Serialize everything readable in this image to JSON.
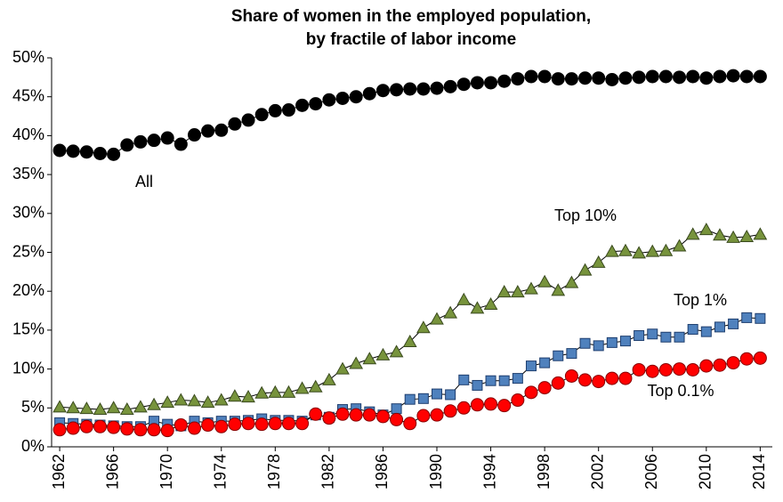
{
  "chart_data": {
    "type": "line",
    "title": [
      "Share of women in the employed population,",
      "by fractile of labor income"
    ],
    "x": [
      1962,
      1963,
      1964,
      1965,
      1966,
      1967,
      1968,
      1969,
      1970,
      1971,
      1972,
      1973,
      1974,
      1975,
      1976,
      1977,
      1978,
      1979,
      1980,
      1981,
      1982,
      1983,
      1984,
      1985,
      1986,
      1987,
      1988,
      1989,
      1990,
      1991,
      1992,
      1993,
      1994,
      1995,
      1996,
      1997,
      1998,
      1999,
      2000,
      2001,
      2002,
      2003,
      2004,
      2005,
      2006,
      2007,
      2008,
      2009,
      2010,
      2011,
      2012,
      2013,
      2014
    ],
    "xlim": [
      1961.4,
      2014.9
    ],
    "xticks": [
      1962,
      1966,
      1970,
      1974,
      1978,
      1982,
      1986,
      1990,
      1994,
      1998,
      2002,
      2006,
      2010,
      2014
    ],
    "ylim": [
      0,
      50
    ],
    "yticks": [
      {
        "value": 0,
        "label": "0%"
      },
      {
        "value": 5,
        "label": "5%"
      },
      {
        "value": 10,
        "label": "10%"
      },
      {
        "value": 15,
        "label": "15%"
      },
      {
        "value": 20,
        "label": "20%"
      },
      {
        "value": 25,
        "label": "25%"
      },
      {
        "value": 30,
        "label": "30%"
      },
      {
        "value": 35,
        "label": "35%"
      },
      {
        "value": 40,
        "label": "40%"
      },
      {
        "value": 45,
        "label": "45%"
      },
      {
        "value": 50,
        "label": "50%"
      }
    ],
    "grid": false,
    "series": [
      {
        "name": "All",
        "color": "#000000",
        "marker": "circle",
        "values": [
          38.1,
          38,
          37.9,
          37.7,
          37.6,
          38.8,
          39.2,
          39.4,
          39.7,
          38.9,
          40.1,
          40.6,
          40.7,
          41.5,
          42,
          42.7,
          43.2,
          43.3,
          43.9,
          44.1,
          44.6,
          44.8,
          45,
          45.4,
          45.8,
          45.9,
          46,
          46,
          46.1,
          46.3,
          46.6,
          46.8,
          46.8,
          47,
          47.3,
          47.6,
          47.6,
          47.3,
          47.3,
          47.4,
          47.4,
          47.2,
          47.4,
          47.5,
          47.6,
          47.6,
          47.5,
          47.6,
          47.4,
          47.6,
          47.7,
          47.6,
          47.6
        ]
      },
      {
        "name": "Top 10%",
        "color": "#77933c",
        "marker": "triangle",
        "values": [
          5.1,
          5,
          4.9,
          4.8,
          5,
          4.8,
          5.1,
          5.4,
          5.7,
          6,
          5.9,
          5.7,
          6,
          6.5,
          6.4,
          6.9,
          7,
          7,
          7.5,
          7.7,
          8.6,
          10,
          10.7,
          11.3,
          11.8,
          12.2,
          13.5,
          15.3,
          16.4,
          17.2,
          18.9,
          17.8,
          18.3,
          19.9,
          19.9,
          20.3,
          21.2,
          20.1,
          21.1,
          22.7,
          23.7,
          25.1,
          25.2,
          24.9,
          25.1,
          25.2,
          25.8,
          27.3,
          27.9,
          27.2,
          26.9,
          27,
          27.3
        ]
      },
      {
        "name": "Top 1%",
        "color": "#4f81bd",
        "marker": "square",
        "values": [
          3.1,
          3,
          2.9,
          2.8,
          2.7,
          2.6,
          2.6,
          3.3,
          2.9,
          2.7,
          3.3,
          3.1,
          3.3,
          3.3,
          3.4,
          3.6,
          3.4,
          3.4,
          3.3,
          4.1,
          3.8,
          4.8,
          4.9,
          4.5,
          4.1,
          4.9,
          6.1,
          6.2,
          6.8,
          6.7,
          8.6,
          7.9,
          8.5,
          8.5,
          8.8,
          10.4,
          10.8,
          11.7,
          12,
          13.3,
          13,
          13.4,
          13.6,
          14.3,
          14.5,
          14.1,
          14.1,
          15.1,
          14.8,
          15.4,
          15.8,
          16.6,
          16.5
        ]
      },
      {
        "name": "Top 0.1%",
        "color": "#ff0000",
        "marker": "circle",
        "values": [
          2.2,
          2.4,
          2.6,
          2.6,
          2.5,
          2.3,
          2.2,
          2.2,
          2.1,
          2.8,
          2.4,
          2.8,
          2.6,
          2.9,
          3,
          2.9,
          3,
          3,
          3,
          4.2,
          3.7,
          4.2,
          4.1,
          4.1,
          3.9,
          3.5,
          3,
          4,
          4.1,
          4.6,
          5,
          5.4,
          5.5,
          5.3,
          6,
          7,
          7.6,
          8.2,
          9.1,
          8.6,
          8.4,
          8.8,
          8.8,
          9.9,
          9.7,
          9.9,
          10,
          9.9,
          10.4,
          10.5,
          10.8,
          11.3,
          11.4
        ]
      }
    ]
  }
}
